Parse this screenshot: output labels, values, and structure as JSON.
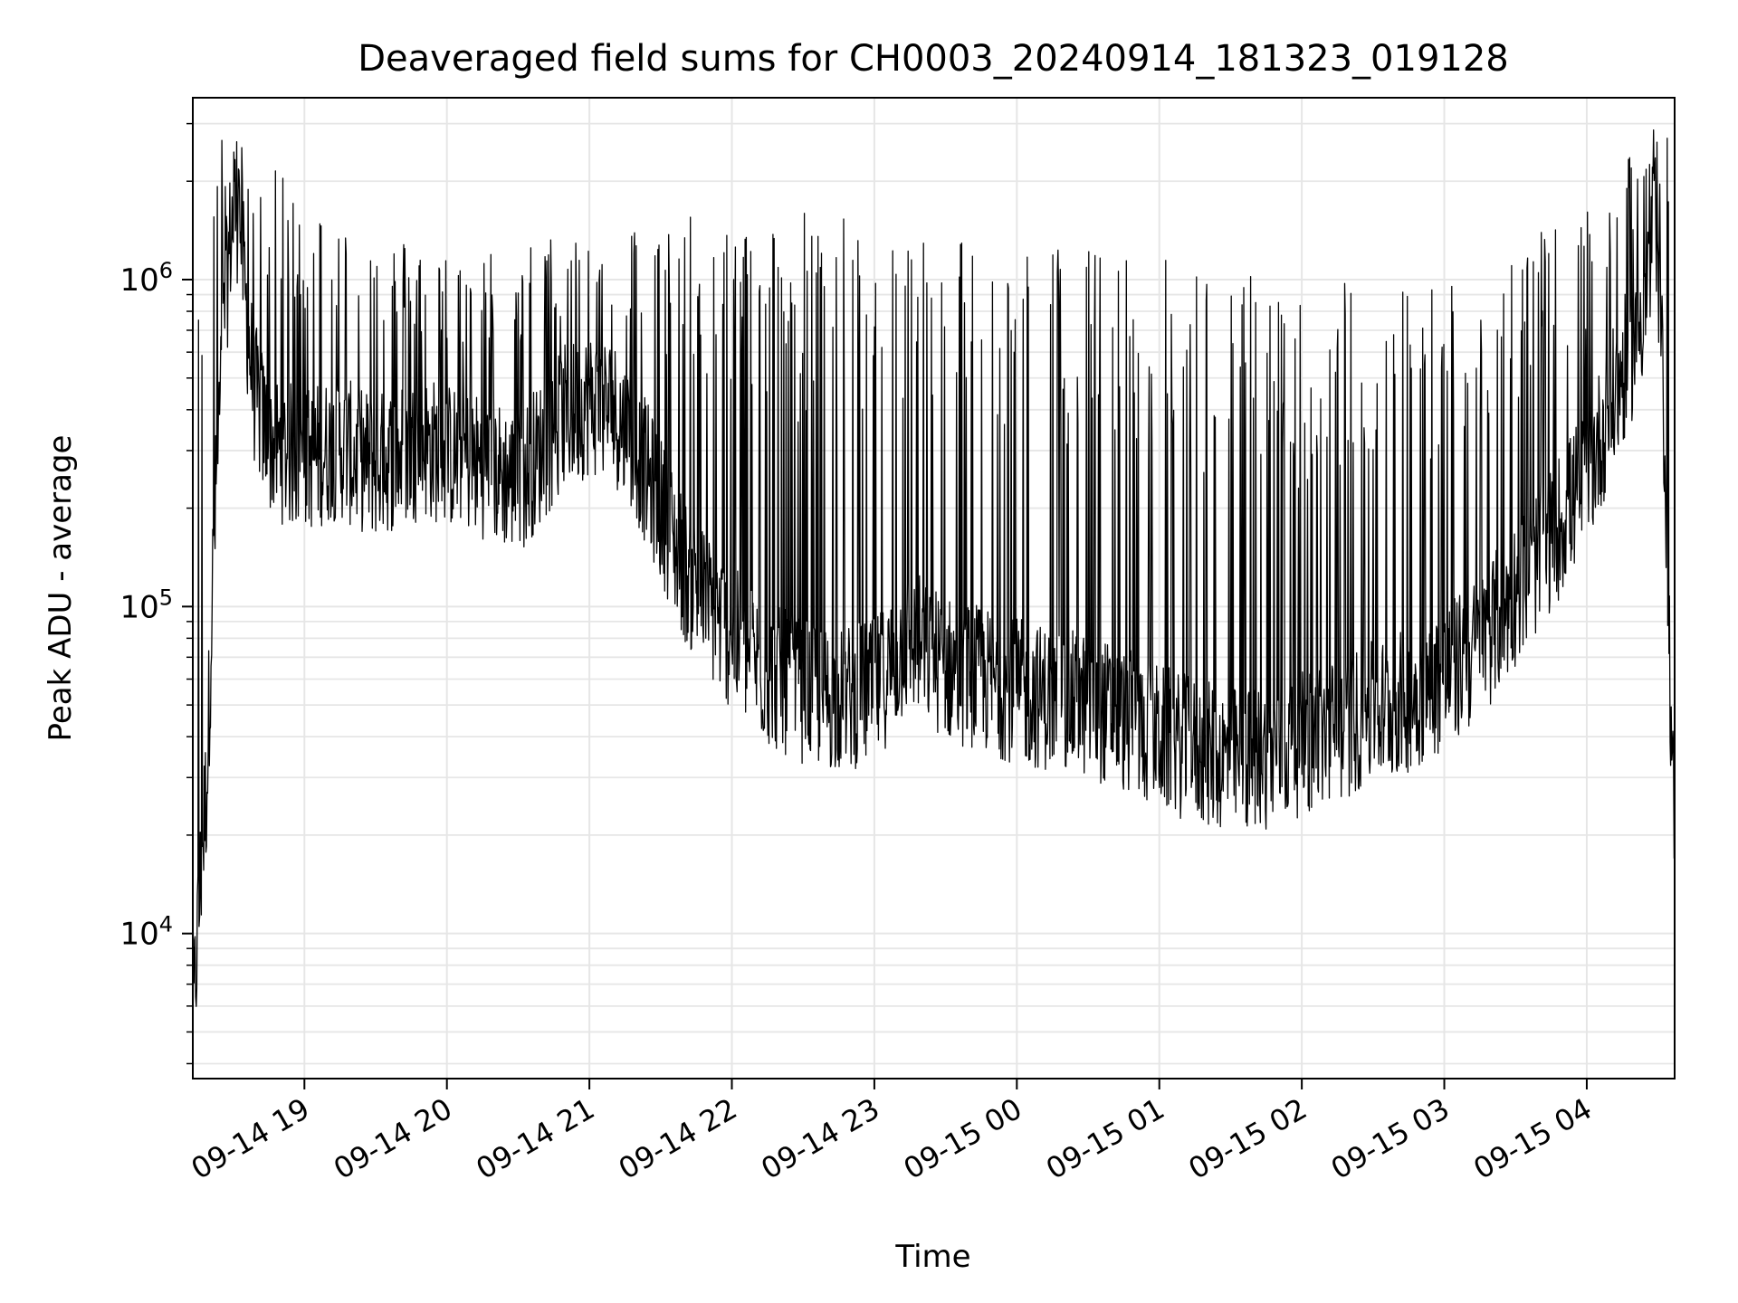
{
  "chart_data": {
    "type": "line",
    "title": "Deaveraged field sums for CH0003_20240914_181323_019128",
    "xlabel": "Time",
    "ylabel": "Peak ADU - average",
    "yscale": "log",
    "ylim": [
      3600,
      3600000
    ],
    "xlim": [
      "2024-09-14 18:13",
      "2024-09-15 04:37"
    ],
    "grid": true,
    "line_color": "#000000",
    "x_ticks": [
      "2024-09-14 19:00",
      "2024-09-14 20:00",
      "2024-09-14 21:00",
      "2024-09-14 22:00",
      "2024-09-14 23:00",
      "2024-09-15 00:00",
      "2024-09-15 01:00",
      "2024-09-15 02:00",
      "2024-09-15 03:00",
      "2024-09-15 04:00"
    ],
    "x_tick_labels": [
      "09-14 19",
      "09-14 20",
      "09-14 21",
      "09-14 22",
      "09-14 23",
      "09-15 00",
      "09-15 01",
      "09-15 02",
      "09-15 03",
      "09-15 04"
    ],
    "y_tick_labels": [
      {
        "value": 10000,
        "base": "10",
        "exp": "4"
      },
      {
        "value": 100000,
        "base": "10",
        "exp": "5"
      },
      {
        "value": 1000000,
        "base": "10",
        "exp": "6"
      }
    ],
    "series": [
      {
        "x": [
          "2024-09-14 18:13",
          "2024-09-14 18:15",
          "2024-09-14 18:17",
          "2024-09-14 18:19",
          "2024-09-14 18:21",
          "2024-09-14 18:23",
          "2024-09-14 18:25",
          "2024-09-14 18:27",
          "2024-09-14 18:29",
          "2024-09-14 18:31",
          "2024-09-14 18:33",
          "2024-09-14 18:35",
          "2024-09-14 18:37",
          "2024-09-14 18:39",
          "2024-09-14 18:41",
          "2024-09-14 18:43",
          "2024-09-14 18:45",
          "2024-09-14 18:47",
          "2024-09-14 18:50",
          "2024-09-14 18:55",
          "2024-09-14 19:00",
          "2024-09-14 19:05",
          "2024-09-14 19:10",
          "2024-09-14 19:15",
          "2024-09-14 19:20",
          "2024-09-14 19:25",
          "2024-09-14 19:30",
          "2024-09-14 19:35",
          "2024-09-14 19:40",
          "2024-09-14 19:45",
          "2024-09-14 19:50",
          "2024-09-14 19:55",
          "2024-09-14 20:00",
          "2024-09-14 20:10",
          "2024-09-14 20:20",
          "2024-09-14 20:30",
          "2024-09-14 20:40",
          "2024-09-14 20:50",
          "2024-09-14 21:00",
          "2024-09-14 21:10",
          "2024-09-14 21:20",
          "2024-09-14 21:30",
          "2024-09-14 21:40",
          "2024-09-14 21:50",
          "2024-09-14 22:00",
          "2024-09-14 22:15",
          "2024-09-14 22:30",
          "2024-09-14 22:45",
          "2024-09-14 23:00",
          "2024-09-14 23:15",
          "2024-09-14 23:30",
          "2024-09-14 23:45",
          "2024-09-15 00:00",
          "2024-09-15 00:15",
          "2024-09-15 00:30",
          "2024-09-15 00:45",
          "2024-09-15 01:00",
          "2024-09-15 01:15",
          "2024-09-15 01:30",
          "2024-09-15 01:45",
          "2024-09-15 02:00",
          "2024-09-15 02:15",
          "2024-09-15 02:30",
          "2024-09-15 02:45",
          "2024-09-15 03:00",
          "2024-09-15 03:15",
          "2024-09-15 03:30",
          "2024-09-15 03:45",
          "2024-09-15 04:00",
          "2024-09-15 04:10",
          "2024-09-15 04:20",
          "2024-09-15 04:25",
          "2024-09-15 04:28",
          "2024-09-15 04:30",
          "2024-09-15 04:32",
          "2024-09-15 04:34",
          "2024-09-15 04:36",
          "2024-09-15 04:37"
        ],
        "y": [
          5000,
          10000,
          18000,
          30000,
          100000,
          250000,
          500000,
          900000,
          1400000,
          1700000,
          1500000,
          900000,
          600000,
          450000,
          400000,
          350000,
          330000,
          310000,
          300000,
          290000,
          280000,
          290000,
          300000,
          310000,
          290000,
          280000,
          270000,
          280000,
          290000,
          300000,
          310000,
          300000,
          290000,
          280000,
          260000,
          240000,
          300000,
          380000,
          420000,
          400000,
          300000,
          200000,
          130000,
          100000,
          80000,
          62000,
          55000,
          52000,
          55000,
          80000,
          65000,
          60000,
          55000,
          52000,
          50000,
          45000,
          40000,
          36000,
          34000,
          35000,
          38000,
          42000,
          47000,
          52000,
          60000,
          75000,
          110000,
          160000,
          250000,
          400000,
          650000,
          900000,
          1300000,
          1000000,
          500000,
          150000,
          30000,
          20000
        ],
        "spikes": {
          "upper_envelope": [
            {
              "x": "2024-09-14 18:29",
              "y": 2800000
            },
            {
              "x": "2024-09-14 19:10",
              "y": 1600000
            },
            {
              "x": "2024-09-14 20:05",
              "y": 1200000
            },
            {
              "x": "2024-09-14 21:10",
              "y": 1500000
            },
            {
              "x": "2024-09-14 22:30",
              "y": 1700000
            },
            {
              "x": "2024-09-14 23:00",
              "y": 1500000
            },
            {
              "x": "2024-09-15 00:00",
              "y": 1400000
            },
            {
              "x": "2024-09-15 01:00",
              "y": 1200000
            },
            {
              "x": "2024-09-15 02:00",
              "y": 1000000
            },
            {
              "x": "2024-09-15 03:00",
              "y": 1050000
            },
            {
              "x": "2024-09-15 04:00",
              "y": 1600000
            },
            {
              "x": "2024-09-15 04:27",
              "y": 2900000
            }
          ]
        }
      }
    ]
  }
}
